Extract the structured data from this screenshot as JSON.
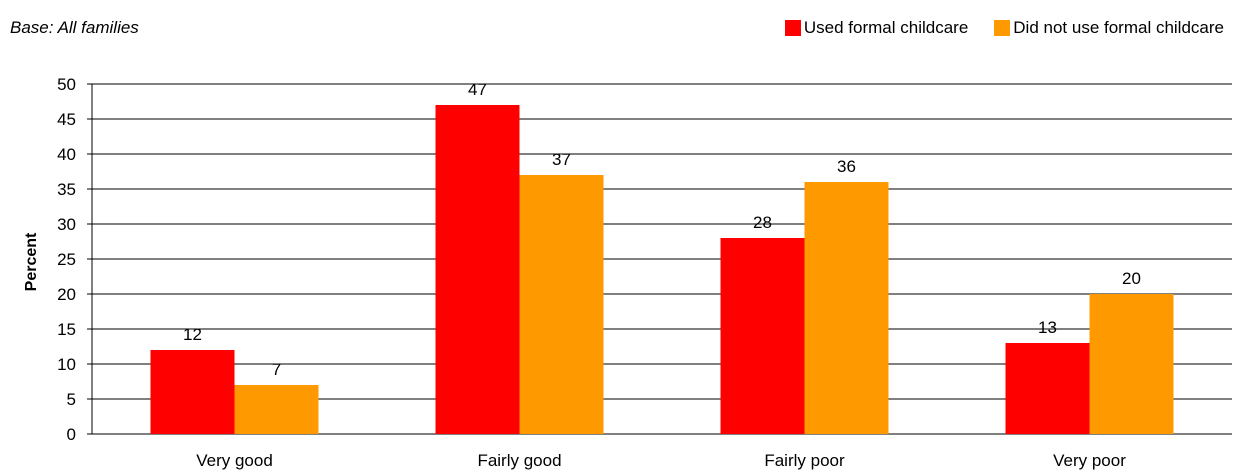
{
  "chart_data": {
    "type": "bar",
    "base_note": "Base: All families",
    "ylabel": "Percent",
    "xlabel": "",
    "ylim": [
      0,
      50
    ],
    "yticks": [
      0,
      5,
      10,
      15,
      20,
      25,
      30,
      35,
      40,
      45,
      50
    ],
    "grid": true,
    "legend_position": "top-right",
    "categories": [
      "Very good",
      "Fairly good",
      "Fairly poor",
      "Very poor"
    ],
    "series": [
      {
        "name": "Used formal childcare",
        "color": "#ff0000",
        "values": [
          12,
          47,
          28,
          13
        ]
      },
      {
        "name": "Did not use formal childcare",
        "color": "#ff9900",
        "values": [
          7,
          37,
          36,
          20
        ]
      }
    ]
  }
}
